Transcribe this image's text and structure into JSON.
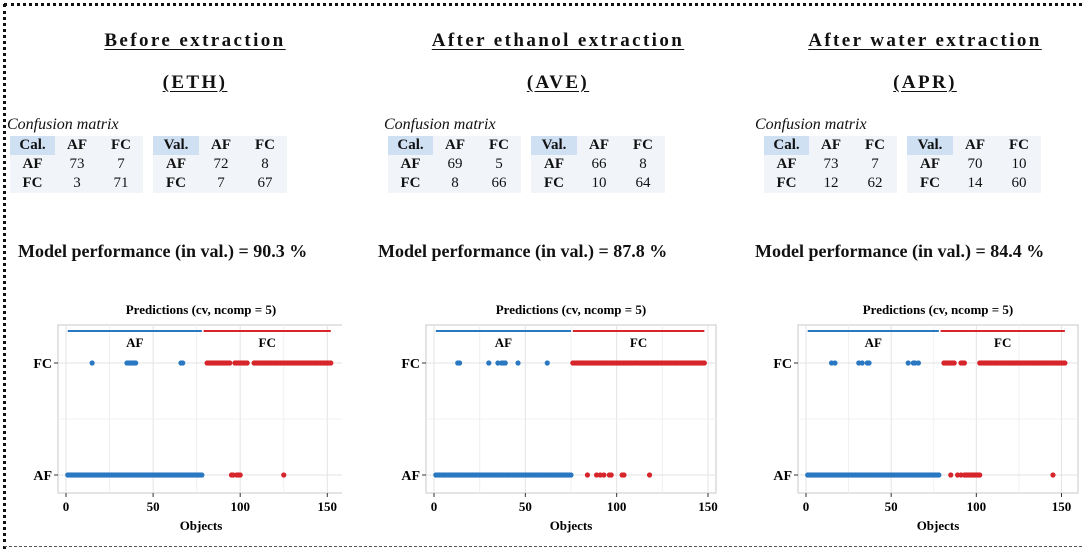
{
  "panels": [
    {
      "title_line1": "Before extraction",
      "title_line2": "(ETH)",
      "confusion_label": "Confusion matrix",
      "cal_header": "Cal.",
      "val_header": "Val.",
      "cal_cols": [
        "AF",
        "FC"
      ],
      "val_cols": [
        "AF",
        "FC"
      ],
      "cal_rows": [
        {
          "label": "AF",
          "values": [
            "73",
            "7"
          ]
        },
        {
          "label": "FC",
          "values": [
            "3",
            "71"
          ]
        }
      ],
      "val_rows": [
        {
          "label": "AF",
          "values": [
            "72",
            "8"
          ]
        },
        {
          "label": "FC",
          "values": [
            "7",
            "67"
          ]
        }
      ],
      "performance": "Model performance (in val.) = 90.3 %"
    },
    {
      "title_line1": "After ethanol extraction",
      "title_line2": "(AVE)",
      "confusion_label": "Confusion matrix",
      "cal_header": "Cal.",
      "val_header": "Val.",
      "cal_cols": [
        "AF",
        "FC"
      ],
      "val_cols": [
        "AF",
        "FC"
      ],
      "cal_rows": [
        {
          "label": "AF",
          "values": [
            "69",
            "5"
          ]
        },
        {
          "label": "FC",
          "values": [
            "8",
            "66"
          ]
        }
      ],
      "val_rows": [
        {
          "label": "AF",
          "values": [
            "66",
            "8"
          ]
        },
        {
          "label": "FC",
          "values": [
            "10",
            "64"
          ]
        }
      ],
      "performance": "Model performance (in val.) = 87.8 %"
    },
    {
      "title_line1": "After water extraction",
      "title_line2": "(APR)",
      "confusion_label": "Confusion matrix",
      "cal_header": "Cal.",
      "val_header": "Val.",
      "cal_cols": [
        "AF",
        "FC"
      ],
      "val_cols": [
        "AF",
        "FC"
      ],
      "cal_rows": [
        {
          "label": "AF",
          "values": [
            "73",
            "7"
          ]
        },
        {
          "label": "FC",
          "values": [
            "12",
            "62"
          ]
        }
      ],
      "val_rows": [
        {
          "label": "AF",
          "values": [
            "70",
            "10"
          ]
        },
        {
          "label": "FC",
          "values": [
            "14",
            "60"
          ]
        }
      ],
      "performance": "Model performance (in val.) = 84.4 %"
    }
  ],
  "chart_data": [
    {
      "type": "scatter",
      "title": "Predictions (cv, ncomp = 5)",
      "xlabel": "Objects",
      "ylabel": "",
      "xlim": [
        0,
        155
      ],
      "xticks": [
        0,
        50,
        100,
        150
      ],
      "ycategories": [
        "AF",
        "FC"
      ],
      "groups": [
        {
          "name": "AF",
          "from": 1,
          "to": 78,
          "color": "#2b78c2"
        },
        {
          "name": "FC",
          "from": 79,
          "to": 152,
          "color": "#d7262b"
        }
      ],
      "series": [
        {
          "group": "AF",
          "predicted": "AF",
          "x_ranges": [
            [
              1,
              78
            ]
          ]
        },
        {
          "group": "AF",
          "predicted": "FC",
          "x": [
            15,
            35,
            36,
            37,
            38,
            39,
            40,
            66,
            67
          ]
        },
        {
          "group": "FC",
          "predicted": "FC",
          "x_ranges": [
            [
              81,
              94
            ],
            [
              97,
              104
            ],
            [
              108,
              152
            ]
          ]
        },
        {
          "group": "FC",
          "predicted": "AF",
          "x": [
            95,
            96,
            98,
            99,
            100,
            125
          ]
        }
      ],
      "grid": true
    },
    {
      "type": "scatter",
      "title": "Predictions (cv, ncomp = 5)",
      "xlabel": "Objects",
      "ylabel": "",
      "xlim": [
        0,
        150
      ],
      "xticks": [
        0,
        50,
        100,
        150
      ],
      "ycategories": [
        "AF",
        "FC"
      ],
      "groups": [
        {
          "name": "AF",
          "from": 1,
          "to": 75,
          "color": "#2b78c2"
        },
        {
          "name": "FC",
          "from": 76,
          "to": 148,
          "color": "#d7262b"
        }
      ],
      "series": [
        {
          "group": "AF",
          "predicted": "AF",
          "x_ranges": [
            [
              1,
              75
            ]
          ]
        },
        {
          "group": "AF",
          "predicted": "FC",
          "x": [
            13,
            14,
            30,
            35,
            37,
            38,
            39,
            46,
            62
          ]
        },
        {
          "group": "FC",
          "predicted": "FC",
          "x_ranges": [
            [
              76,
              148
            ]
          ]
        },
        {
          "group": "FC",
          "predicted": "AF",
          "x": [
            84,
            89,
            91,
            93,
            96,
            97,
            103,
            104,
            118
          ]
        }
      ],
      "grid": true
    },
    {
      "type": "scatter",
      "title": "Predictions (cv, ncomp = 5)",
      "xlabel": "Objects",
      "ylabel": "",
      "xlim": [
        0,
        155
      ],
      "xticks": [
        0,
        50,
        100,
        150
      ],
      "ycategories": [
        "AF",
        "FC"
      ],
      "groups": [
        {
          "name": "AF",
          "from": 1,
          "to": 78,
          "color": "#2b78c2"
        },
        {
          "name": "FC",
          "from": 79,
          "to": 152,
          "color": "#d7262b"
        }
      ],
      "series": [
        {
          "group": "AF",
          "predicted": "AF",
          "x_ranges": [
            [
              1,
              78
            ]
          ]
        },
        {
          "group": "AF",
          "predicted": "FC",
          "x": [
            15,
            17,
            31,
            33,
            36,
            37,
            60,
            63,
            64,
            66
          ]
        },
        {
          "group": "FC",
          "predicted": "FC",
          "x_ranges": [
            [
              81,
              87
            ],
            [
              91,
              93
            ],
            [
              102,
              152
            ]
          ]
        },
        {
          "group": "FC",
          "predicted": "AF",
          "x": [
            85,
            89,
            91,
            93,
            94,
            95,
            96,
            97,
            98,
            99,
            100,
            101,
            102,
            145
          ]
        }
      ],
      "grid": true
    }
  ]
}
